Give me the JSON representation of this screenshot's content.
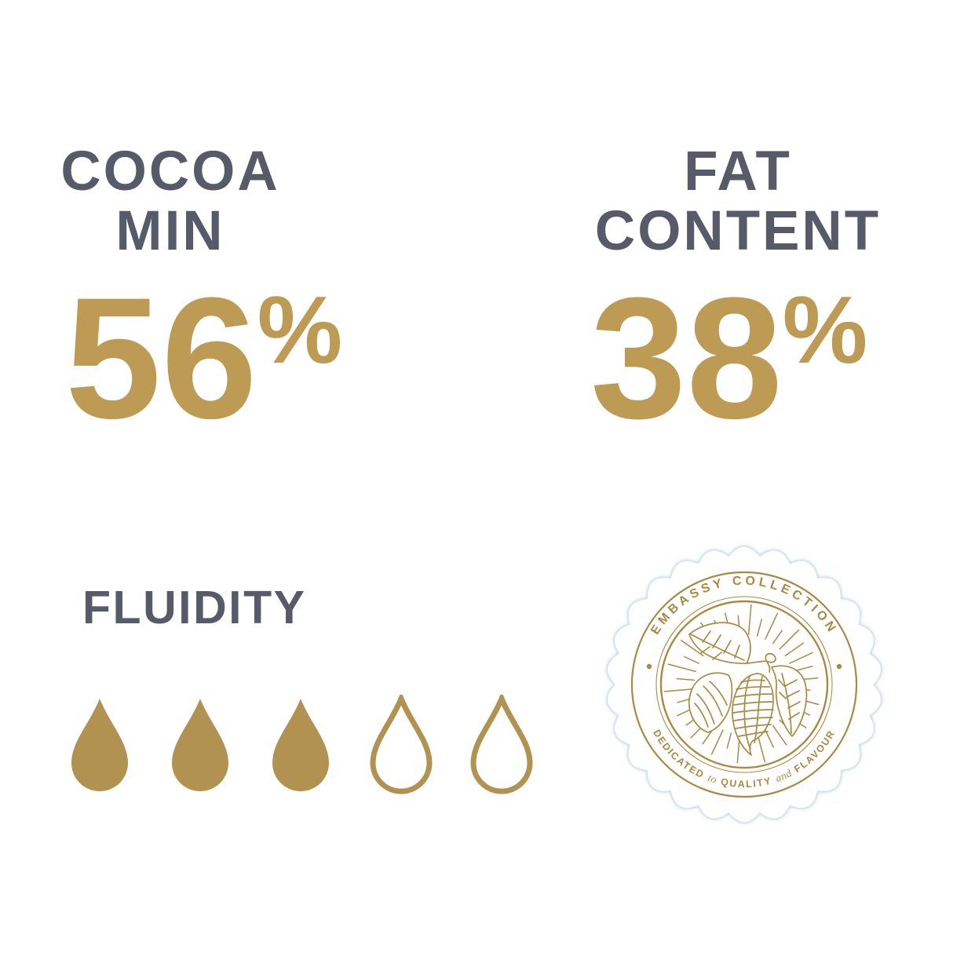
{
  "colors": {
    "heading": "#565A69",
    "gold": "#BE9B55",
    "drop-gold": "#B29250",
    "badge-gold": "#A98A43",
    "badge-edge": "#cfe4ec",
    "bg": "#ffffff"
  },
  "stats": [
    {
      "id": "cocoa-min",
      "line1": "COCOA",
      "line2": "MIN",
      "value": "56",
      "unit": "%"
    },
    {
      "id": "fat-content",
      "line1": "FAT",
      "line2": "CONTENT",
      "value": "38",
      "unit": "%"
    }
  ],
  "fluidity": {
    "label": "FLUIDITY",
    "drops_total": 5,
    "drops_filled": 3,
    "drop_icon": "teardrop-icon"
  },
  "badge": {
    "top_text": "EMBASSY COLLECTION",
    "bottom_parts": [
      "DEDICATED",
      "to",
      "QUALITY",
      "and",
      "FLAVOUR"
    ],
    "center_icon": "cocoa-pods-icon",
    "shape": "scalloped-seal"
  }
}
